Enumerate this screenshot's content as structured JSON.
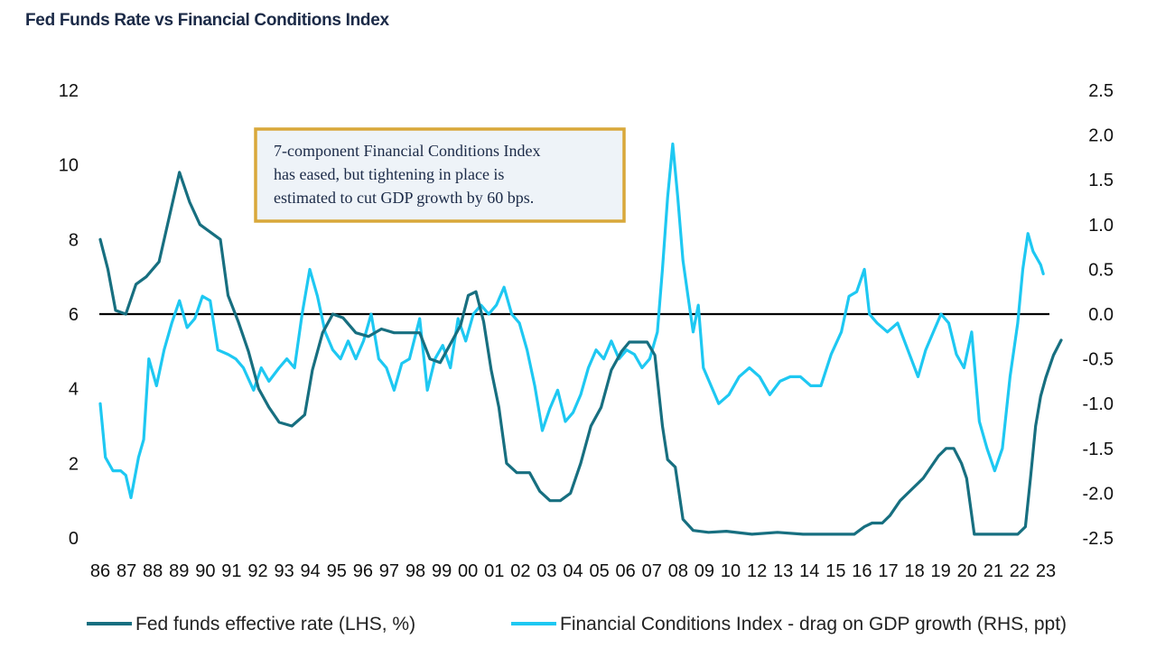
{
  "title": "Fed Funds Rate vs Financial Conditions Index",
  "colors": {
    "fed": "#176f80",
    "fci": "#1ec8f2",
    "zero_line": "#000000",
    "annotation_border": "#d9a83a",
    "annotation_bg": "#eef3f8"
  },
  "annotation": {
    "lines": [
      "7-component Financial Conditions Index",
      "has eased, but tightening in place is",
      "estimated to cut GDP growth by 60 bps."
    ]
  },
  "chart_data": {
    "type": "line",
    "title": "Fed Funds Rate vs Financial Conditions Index",
    "x_ticks": [
      "86",
      "87",
      "88",
      "89",
      "90",
      "91",
      "92",
      "93",
      "94",
      "95",
      "96",
      "97",
      "98",
      "99",
      "00",
      "01",
      "02",
      "03",
      "04",
      "05",
      "06",
      "07",
      "08",
      "09",
      "10",
      "12",
      "13",
      "14",
      "15",
      "16",
      "17",
      "18",
      "19",
      "20",
      "21",
      "22",
      "23"
    ],
    "left_axis": {
      "label": "",
      "ylim": [
        0,
        12
      ],
      "ticks": [
        "12",
        "10",
        "8",
        "6",
        "4",
        "2",
        "0"
      ]
    },
    "right_axis": {
      "label": "",
      "ylim": [
        -2.5,
        2.5
      ],
      "ticks": [
        "2.5",
        "2.0",
        "1.5",
        "1.0",
        "0.5",
        "0.0",
        "-0.5",
        "-1.0",
        "-1.5",
        "-2.0",
        "-2.5"
      ]
    },
    "series": [
      {
        "name": "Fed funds effective rate (LHS, %)",
        "axis": "left",
        "x": [
          1986.0,
          1986.3,
          1986.6,
          1987.0,
          1987.4,
          1987.8,
          1988.3,
          1988.7,
          1989.1,
          1989.5,
          1989.9,
          1990.3,
          1990.7,
          1991.0,
          1991.4,
          1991.8,
          1992.2,
          1992.6,
          1993.0,
          1993.5,
          1994.0,
          1994.3,
          1994.7,
          1995.1,
          1995.5,
          1996.0,
          1996.5,
          1997.0,
          1997.5,
          1998.0,
          1998.5,
          1998.9,
          1999.3,
          1999.7,
          2000.1,
          2000.4,
          2000.7,
          2001.0,
          2001.3,
          2001.6,
          2001.9,
          2002.3,
          2002.8,
          2003.2,
          2003.6,
          2004.0,
          2004.4,
          2004.8,
          2005.2,
          2005.6,
          2006.0,
          2006.4,
          2006.7,
          2007.0,
          2007.4,
          2007.7,
          2008.0,
          2008.2,
          2008.5,
          2008.8,
          2009.2,
          2009.8,
          2010.5,
          2011.5,
          2012.5,
          2013.5,
          2014.5,
          2015.5,
          2015.9,
          2016.2,
          2016.6,
          2016.9,
          2017.3,
          2017.6,
          2017.9,
          2018.2,
          2018.5,
          2018.8,
          2019.1,
          2019.4,
          2019.7,
          2019.9,
          2020.2,
          2020.5,
          2021.0,
          2021.5,
          2021.9,
          2022.2,
          2022.4,
          2022.6,
          2022.8,
          2023.0,
          2023.3,
          2023.6
        ],
        "values": [
          8.0,
          7.2,
          6.1,
          6.0,
          6.8,
          7.0,
          7.4,
          8.6,
          9.8,
          9.0,
          8.4,
          8.2,
          8.0,
          6.5,
          5.8,
          5.0,
          4.0,
          3.5,
          3.1,
          3.0,
          3.3,
          4.5,
          5.5,
          6.0,
          5.9,
          5.5,
          5.4,
          5.6,
          5.5,
          5.5,
          5.5,
          4.8,
          4.7,
          5.2,
          5.7,
          6.5,
          6.6,
          5.8,
          4.5,
          3.5,
          2.0,
          1.75,
          1.75,
          1.25,
          1.0,
          1.0,
          1.2,
          2.0,
          3.0,
          3.5,
          4.5,
          5.0,
          5.25,
          5.25,
          5.25,
          4.9,
          3.0,
          2.1,
          1.9,
          0.5,
          0.2,
          0.15,
          0.18,
          0.1,
          0.15,
          0.1,
          0.1,
          0.1,
          0.3,
          0.4,
          0.4,
          0.6,
          1.0,
          1.2,
          1.4,
          1.6,
          1.9,
          2.2,
          2.4,
          2.4,
          2.0,
          1.6,
          0.1,
          0.1,
          0.1,
          0.1,
          0.1,
          0.3,
          1.6,
          3.0,
          3.8,
          4.3,
          4.9,
          5.3
        ]
      },
      {
        "name": "Financial Conditions Index - drag on GDP growth (RHS, ppt)",
        "axis": "right",
        "x": [
          1986.0,
          1986.2,
          1986.5,
          1986.8,
          1987.0,
          1987.2,
          1987.5,
          1987.7,
          1987.9,
          1988.2,
          1988.5,
          1988.8,
          1989.1,
          1989.4,
          1989.7,
          1990.0,
          1990.3,
          1990.6,
          1991.0,
          1991.3,
          1991.6,
          1992.0,
          1992.3,
          1992.6,
          1993.0,
          1993.3,
          1993.6,
          1993.9,
          1994.2,
          1994.5,
          1994.8,
          1995.1,
          1995.4,
          1995.7,
          1996.0,
          1996.3,
          1996.6,
          1996.9,
          1997.2,
          1997.5,
          1997.8,
          1998.1,
          1998.5,
          1998.8,
          1999.1,
          1999.4,
          1999.7,
          2000.0,
          2000.3,
          2000.6,
          2000.9,
          2001.2,
          2001.5,
          2001.8,
          2002.1,
          2002.4,
          2002.7,
          2003.0,
          2003.3,
          2003.6,
          2003.9,
          2004.2,
          2004.5,
          2004.8,
          2005.1,
          2005.4,
          2005.7,
          2006.0,
          2006.3,
          2006.6,
          2006.9,
          2007.2,
          2007.5,
          2007.8,
          2008.0,
          2008.2,
          2008.4,
          2008.6,
          2008.8,
          2009.0,
          2009.2,
          2009.4,
          2009.6,
          2009.9,
          2010.2,
          2010.6,
          2011.0,
          2011.4,
          2011.8,
          2012.2,
          2012.6,
          2013.0,
          2013.4,
          2013.8,
          2014.2,
          2014.6,
          2015.0,
          2015.3,
          2015.6,
          2015.9,
          2016.1,
          2016.4,
          2016.8,
          2017.2,
          2017.6,
          2018.0,
          2018.3,
          2018.6,
          2018.9,
          2019.2,
          2019.5,
          2019.8,
          2020.1,
          2020.4,
          2020.7,
          2021.0,
          2021.3,
          2021.6,
          2021.9,
          2022.1,
          2022.3,
          2022.5,
          2022.7,
          2022.8,
          2022.9
        ],
        "values": [
          -1.0,
          -1.6,
          -1.75,
          -1.75,
          -1.8,
          -2.05,
          -1.6,
          -1.4,
          -0.5,
          -0.8,
          -0.4,
          -0.1,
          0.15,
          -0.15,
          -0.05,
          0.2,
          0.15,
          -0.4,
          -0.45,
          -0.5,
          -0.6,
          -0.85,
          -0.6,
          -0.75,
          -0.6,
          -0.5,
          -0.6,
          0.0,
          0.5,
          0.2,
          -0.2,
          -0.4,
          -0.5,
          -0.3,
          -0.5,
          -0.3,
          0.0,
          -0.5,
          -0.6,
          -0.85,
          -0.55,
          -0.5,
          -0.05,
          -0.85,
          -0.5,
          -0.35,
          -0.6,
          -0.05,
          -0.3,
          0.0,
          0.1,
          0.0,
          0.1,
          0.3,
          0.0,
          -0.1,
          -0.4,
          -0.8,
          -1.3,
          -1.05,
          -0.85,
          -1.2,
          -1.1,
          -0.9,
          -0.6,
          -0.4,
          -0.5,
          -0.3,
          -0.5,
          -0.4,
          -0.45,
          -0.6,
          -0.5,
          -0.2,
          0.5,
          1.3,
          1.9,
          1.3,
          0.6,
          0.2,
          -0.2,
          0.1,
          -0.6,
          -0.8,
          -1.0,
          -0.9,
          -0.7,
          -0.6,
          -0.7,
          -0.9,
          -0.75,
          -0.7,
          -0.7,
          -0.8,
          -0.8,
          -0.45,
          -0.2,
          0.2,
          0.25,
          0.5,
          0.0,
          -0.1,
          -0.2,
          -0.1,
          -0.4,
          -0.7,
          -0.4,
          -0.2,
          0.0,
          -0.1,
          -0.45,
          -0.6,
          -0.2,
          -1.2,
          -1.5,
          -1.75,
          -1.5,
          -0.7,
          -0.1,
          0.5,
          0.9,
          0.7,
          0.6,
          0.55,
          0.45
        ]
      }
    ],
    "legend_position": "bottom",
    "zero_line_right_axis": 0.0,
    "grid": false
  }
}
